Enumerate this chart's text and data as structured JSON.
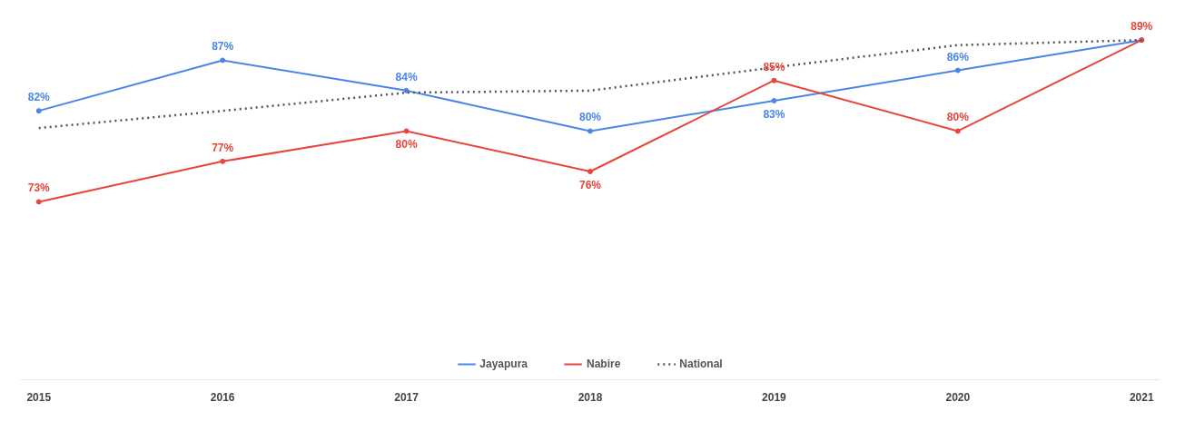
{
  "chart_data": {
    "type": "line",
    "x": [
      2015,
      2016,
      2017,
      2018,
      2019,
      2020,
      2021
    ],
    "xlim": [
      2014.9,
      2021.1
    ],
    "xticks": [
      2015,
      2016,
      2017,
      2018,
      2019,
      2020,
      2021
    ],
    "tick_labels": "x",
    "legend": "bottom",
    "series": [
      {
        "name": "Jayapura",
        "color": "#4a86e8",
        "line_style": "solid",
        "marker": "circle",
        "values": [
          82,
          87,
          84,
          80,
          83,
          86,
          89
        ],
        "value_labels": [
          "82%",
          "87%",
          "84%",
          "80%",
          "83%",
          "86%",
          null
        ]
      },
      {
        "name": "Nabire",
        "color": "#e8453c",
        "line_style": "solid",
        "marker": "circle",
        "values": [
          73,
          77,
          80,
          76,
          85,
          80,
          89
        ],
        "value_labels": [
          "73%",
          "77%",
          "80%",
          "76%",
          "85%",
          "80%",
          "89%"
        ]
      },
      {
        "name": "National",
        "color": "#555555",
        "line_style": "dotted",
        "values": [
          80.3,
          82,
          83.8,
          84,
          86.3,
          88.5,
          89
        ]
      }
    ]
  }
}
